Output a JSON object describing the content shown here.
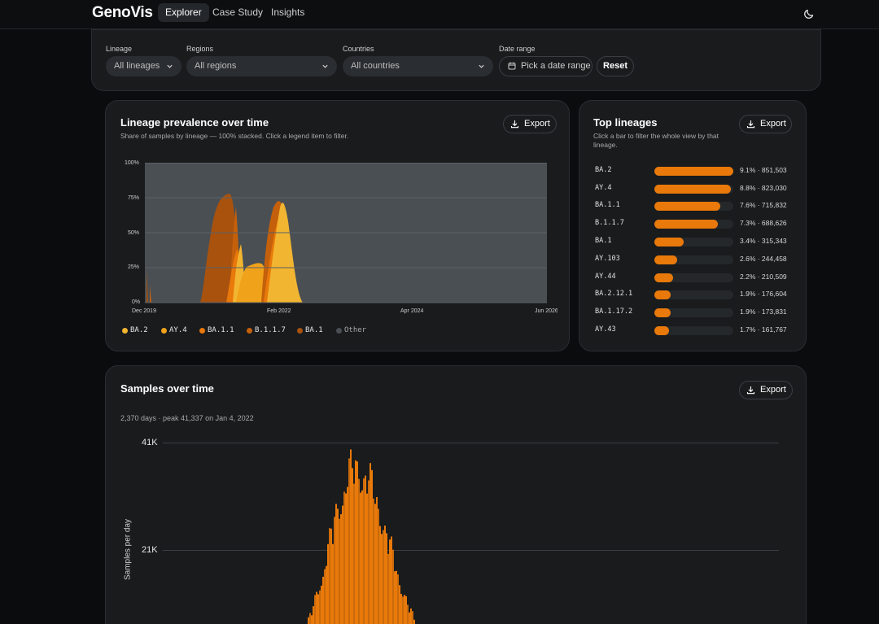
{
  "nav": {
    "brand": "GenoVis",
    "tabs": [
      {
        "label": "Explorer",
        "active": true
      },
      {
        "label": "Case Study",
        "active": false
      },
      {
        "label": "Insights",
        "active": false
      }
    ],
    "theme_icon": "moon-icon"
  },
  "filters": {
    "lineage": {
      "label": "Lineage",
      "value": "All lineages"
    },
    "regions": {
      "label": "Regions",
      "value": "All regions"
    },
    "countries": {
      "label": "Countries",
      "value": "All countries"
    },
    "date_range": {
      "label": "Date range",
      "value": "Pick a date range"
    },
    "reset_label": "Reset"
  },
  "prevalence": {
    "title": "Lineage prevalence over time",
    "subtitle": "Share of samples by lineage — 100% stacked. Click a legend item to filter.",
    "export_label": "Export",
    "y_ticks": [
      "100%",
      "75%",
      "50%",
      "25%",
      "0%"
    ],
    "x_ticks": [
      "Dec 2019",
      "Feb 2022",
      "Apr 2024",
      "Jun 2026"
    ],
    "legend": [
      {
        "name": "BA.2",
        "color": "#f2b531"
      },
      {
        "name": "AY.4",
        "color": "#f0a21a"
      },
      {
        "name": "BA.1.1",
        "color": "#e8790a"
      },
      {
        "name": "B.1.1.7",
        "color": "#c4600b"
      },
      {
        "name": "BA.1",
        "color": "#a8520e"
      },
      {
        "name": "Other",
        "color": "#4a4f54"
      }
    ]
  },
  "top_lineages": {
    "title": "Top lineages",
    "subtitle": "Click a bar to filter the whole view by that lineage.",
    "export_label": "Export",
    "items": [
      {
        "name": "BA.2",
        "share": 9.1,
        "value_text": "9.1% · 851,503"
      },
      {
        "name": "AY.4",
        "share": 8.8,
        "value_text": "8.8% · 823,030"
      },
      {
        "name": "BA.1.1",
        "share": 7.6,
        "value_text": "7.6% · 715,832"
      },
      {
        "name": "B.1.1.7",
        "share": 7.3,
        "value_text": "7.3% · 688,626"
      },
      {
        "name": "BA.1",
        "share": 3.4,
        "value_text": "3.4% · 315,343"
      },
      {
        "name": "AY.103",
        "share": 2.6,
        "value_text": "2.6% · 244,458"
      },
      {
        "name": "AY.44",
        "share": 2.2,
        "value_text": "2.2% · 210,509"
      },
      {
        "name": "BA.2.12.1",
        "share": 1.9,
        "value_text": "1.9% · 176,604"
      },
      {
        "name": "BA.1.17.2",
        "share": 1.9,
        "value_text": "1.9% · 173,831"
      },
      {
        "name": "AY.43",
        "share": 1.7,
        "value_text": "1.7% · 161,767"
      }
    ]
  },
  "samples": {
    "title": "Samples over time",
    "export_label": "Export",
    "summary": "2,370 days · peak 41,337 on Jan 4, 2022",
    "y_ticks": [
      "41K",
      "21K"
    ],
    "ylabel": "Samples per day"
  },
  "chart_data": [
    {
      "type": "area",
      "title": "Lineage prevalence over time",
      "ylim": [
        0,
        100
      ],
      "x_ticks": [
        "Dec 2019",
        "Feb 2022",
        "Apr 2024",
        "Jun 2026"
      ],
      "series": [
        {
          "name": "BA.1",
          "peak_share_pct": 78
        },
        {
          "name": "B.1.1.7",
          "peak_share_pct": 70
        },
        {
          "name": "BA.1.1",
          "peak_share_pct": 75
        },
        {
          "name": "AY.4",
          "peak_share_pct": 40
        },
        {
          "name": "BA.2",
          "peak_share_pct": 70
        }
      ]
    },
    {
      "type": "bar",
      "title": "Samples over time",
      "ylabel": "Samples per day",
      "y_ticks": [
        41000,
        21000
      ],
      "peak": {
        "value": 41337,
        "date": "Jan 4, 2022"
      }
    }
  ]
}
